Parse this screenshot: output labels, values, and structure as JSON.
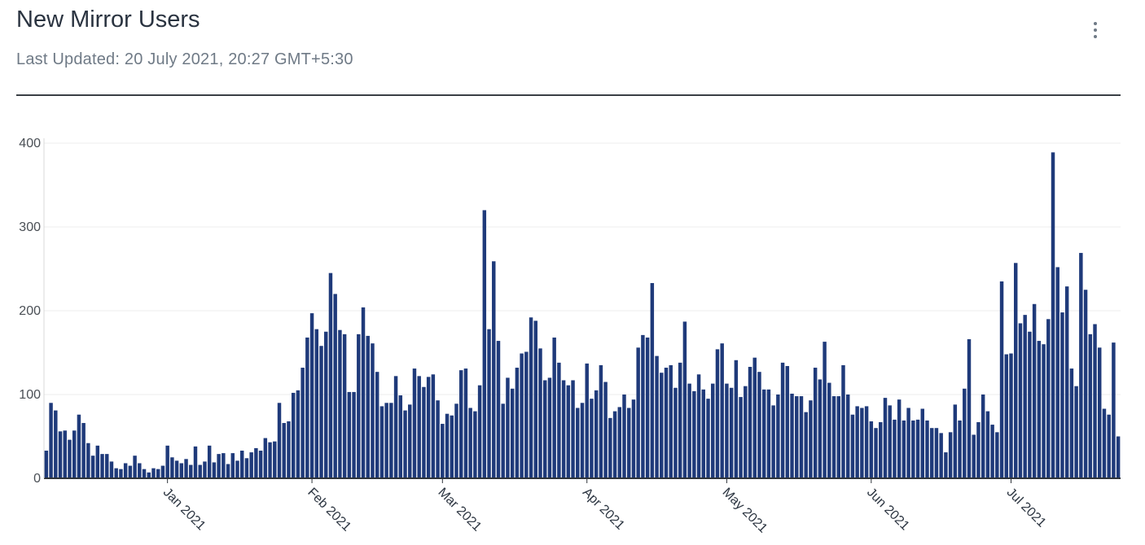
{
  "header": {
    "title": "New Mirror Users",
    "last_updated": "Last Updated: 20 July 2021, 20:27 GMT+5:30",
    "menu_icon": "kebab-menu-icon"
  },
  "colors": {
    "bar": "#1f3a7a",
    "grid": "#ececec",
    "axis": "#2f343a"
  },
  "chart_data": {
    "type": "bar",
    "title": "New Mirror Users",
    "xlabel": "",
    "ylabel": "",
    "ylim": [
      0,
      400
    ],
    "yticks": [
      0,
      100,
      200,
      300,
      400
    ],
    "grid": true,
    "x_start_date": "2020-12-06",
    "month_ticks": [
      {
        "label": "Jan 2021",
        "date": "2021-01-01"
      },
      {
        "label": "Feb 2021",
        "date": "2021-02-01"
      },
      {
        "label": "Mar 2021",
        "date": "2021-03-01"
      },
      {
        "label": "Apr 2021",
        "date": "2021-04-01"
      },
      {
        "label": "May 2021",
        "date": "2021-05-01"
      },
      {
        "label": "Jun 2021",
        "date": "2021-06-01"
      },
      {
        "label": "Jul 2021",
        "date": "2021-07-01"
      }
    ],
    "values": [
      33,
      90,
      81,
      56,
      57,
      46,
      57,
      76,
      66,
      42,
      27,
      39,
      29,
      29,
      20,
      12,
      11,
      18,
      15,
      27,
      18,
      11,
      7,
      12,
      11,
      15,
      39,
      25,
      21,
      18,
      23,
      16,
      38,
      16,
      20,
      39,
      19,
      29,
      30,
      17,
      30,
      21,
      33,
      24,
      31,
      36,
      33,
      48,
      43,
      44,
      90,
      66,
      68,
      102,
      105,
      132,
      168,
      197,
      178,
      158,
      175,
      245,
      220,
      177,
      172,
      103,
      103,
      172,
      204,
      170,
      161,
      127,
      86,
      90,
      90,
      122,
      99,
      81,
      88,
      131,
      122,
      109,
      121,
      124,
      93,
      65,
      77,
      75,
      89,
      129,
      131,
      84,
      80,
      111,
      320,
      178,
      259,
      164,
      89,
      120,
      107,
      132,
      149,
      151,
      192,
      188,
      155,
      117,
      120,
      168,
      138,
      117,
      111,
      117,
      84,
      90,
      137,
      95,
      105,
      135,
      115,
      72,
      80,
      85,
      100,
      84,
      94,
      156,
      171,
      168,
      233,
      146,
      126,
      132,
      135,
      108,
      138,
      187,
      113,
      104,
      124,
      106,
      95,
      113,
      154,
      161,
      113,
      108,
      141,
      97,
      110,
      133,
      144,
      127,
      106,
      106,
      87,
      100,
      138,
      134,
      101,
      98,
      98,
      79,
      93,
      132,
      118,
      163,
      114,
      98,
      98,
      135,
      100,
      76,
      86,
      84,
      86,
      68,
      60,
      67,
      96,
      87,
      70,
      94,
      69,
      84,
      69,
      70,
      83,
      69,
      60,
      60,
      54,
      31,
      55,
      88,
      69,
      107,
      166,
      52,
      67,
      100,
      80,
      64,
      55,
      235,
      148,
      149,
      257,
      185,
      195,
      175,
      208,
      164,
      160,
      190,
      389,
      252,
      198,
      229,
      131,
      110,
      269,
      225,
      172,
      184,
      156,
      83,
      76,
      162,
      50
    ]
  }
}
